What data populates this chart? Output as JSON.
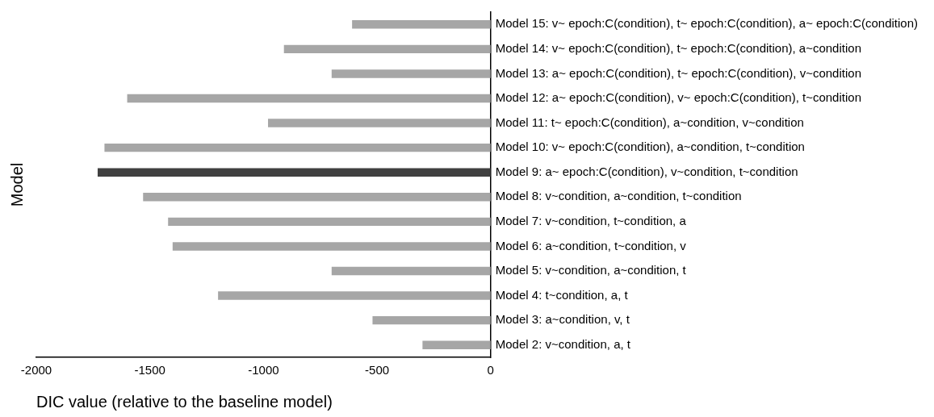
{
  "chart_data": {
    "type": "bar",
    "orientation": "horizontal",
    "xlabel": "DIC value (relative to the baseline model)",
    "ylabel": "Model",
    "categories": [
      "Model 15: v~ epoch:C(condition), t~ epoch:C(condition), a~ epoch:C(condition)",
      "Model 14: v~ epoch:C(condition), t~ epoch:C(condition), a~condition",
      "Model 13: a~ epoch:C(condition), t~ epoch:C(condition), v~condition",
      "Model 12: a~ epoch:C(condition), v~ epoch:C(condition), t~condition",
      "Model 11: t~ epoch:C(condition), a~condition, v~condition",
      "Model 10: v~ epoch:C(condition), a~condition, t~condition",
      "Model 9: a~ epoch:C(condition), v~condition, t~condition",
      "Model 8: v~condition, a~condition, t~condition",
      "Model 7: v~condition, t~condition, a",
      "Model 6: a~condition, t~condition, v",
      "Model 5: v~condition, a~condition, t",
      "Model 4: t~condition, a, t",
      "Model 3: a~condition, v, t",
      "Model 2: v~condition, a, t"
    ],
    "values": [
      -610,
      -910,
      -700,
      -1600,
      -980,
      -1700,
      -1730,
      -1530,
      -1420,
      -1400,
      -700,
      -1200,
      -520,
      -300
    ],
    "colors": [
      "#a6a6a6",
      "#a6a6a6",
      "#a6a6a6",
      "#a6a6a6",
      "#a6a6a6",
      "#a6a6a6",
      "#404040",
      "#a6a6a6",
      "#a6a6a6",
      "#a6a6a6",
      "#a6a6a6",
      "#a6a6a6",
      "#a6a6a6",
      "#a6a6a6"
    ],
    "xlim": [
      -2000,
      0
    ],
    "xticks": [
      -2000,
      -1500,
      -1000,
      -500,
      0
    ],
    "grid": false,
    "legend": false
  }
}
